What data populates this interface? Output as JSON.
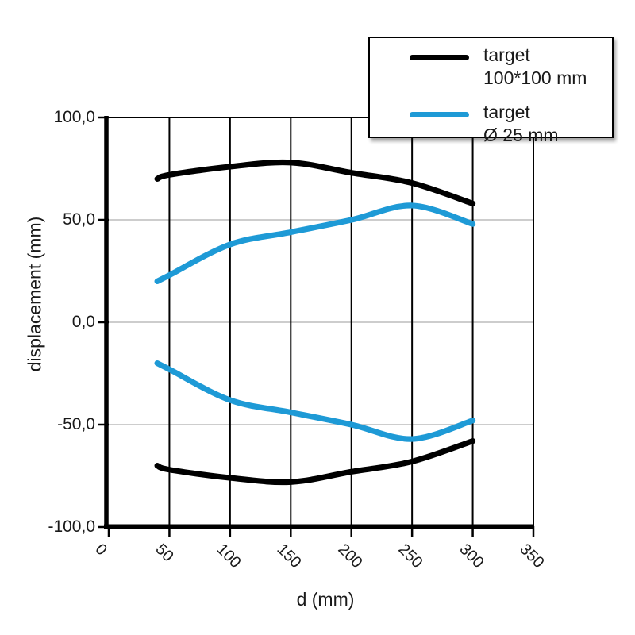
{
  "chart_data": {
    "type": "line",
    "title": "",
    "xlabel": "d (mm)",
    "ylabel": "displacement (mm)",
    "xlim": [
      0,
      350
    ],
    "ylim": [
      -100,
      100
    ],
    "x_ticks": [
      0,
      50,
      100,
      150,
      200,
      250,
      300,
      350
    ],
    "x_tick_labels": [
      "0",
      "50",
      "100",
      "150",
      "200",
      "250",
      "300",
      "350"
    ],
    "y_ticks": [
      100,
      50,
      0,
      -50,
      -100
    ],
    "y_tick_labels": [
      "100,0",
      "50,0",
      "0,0",
      "-50,0",
      "-100,0"
    ],
    "grid": {
      "vertical_color": "#000000",
      "horizontal_color": "#c6c6c6",
      "vertical": true,
      "horizontal": true
    },
    "legend_position": "top-right",
    "x": [
      40,
      50,
      100,
      150,
      200,
      250,
      300
    ],
    "series": [
      {
        "name": "target 100*100 mm",
        "color": "#000000",
        "upper": [
          70,
          72,
          76,
          78,
          73,
          68,
          58
        ],
        "lower": [
          -70,
          -72,
          -76,
          -78,
          -73,
          -68,
          -58
        ]
      },
      {
        "name": "target Ø 25 mm",
        "color": "#1e9ad6",
        "upper": [
          20,
          23,
          38,
          44,
          50,
          57,
          48
        ],
        "lower": [
          -20,
          -23,
          -38,
          -44,
          -50,
          -57,
          -48
        ]
      }
    ]
  },
  "legend": {
    "items": [
      {
        "line1": "target",
        "line2": "100*100 mm",
        "color": "#000000"
      },
      {
        "line1": "target",
        "line2": "Ø 25 mm",
        "color": "#1e9ad6"
      }
    ]
  }
}
